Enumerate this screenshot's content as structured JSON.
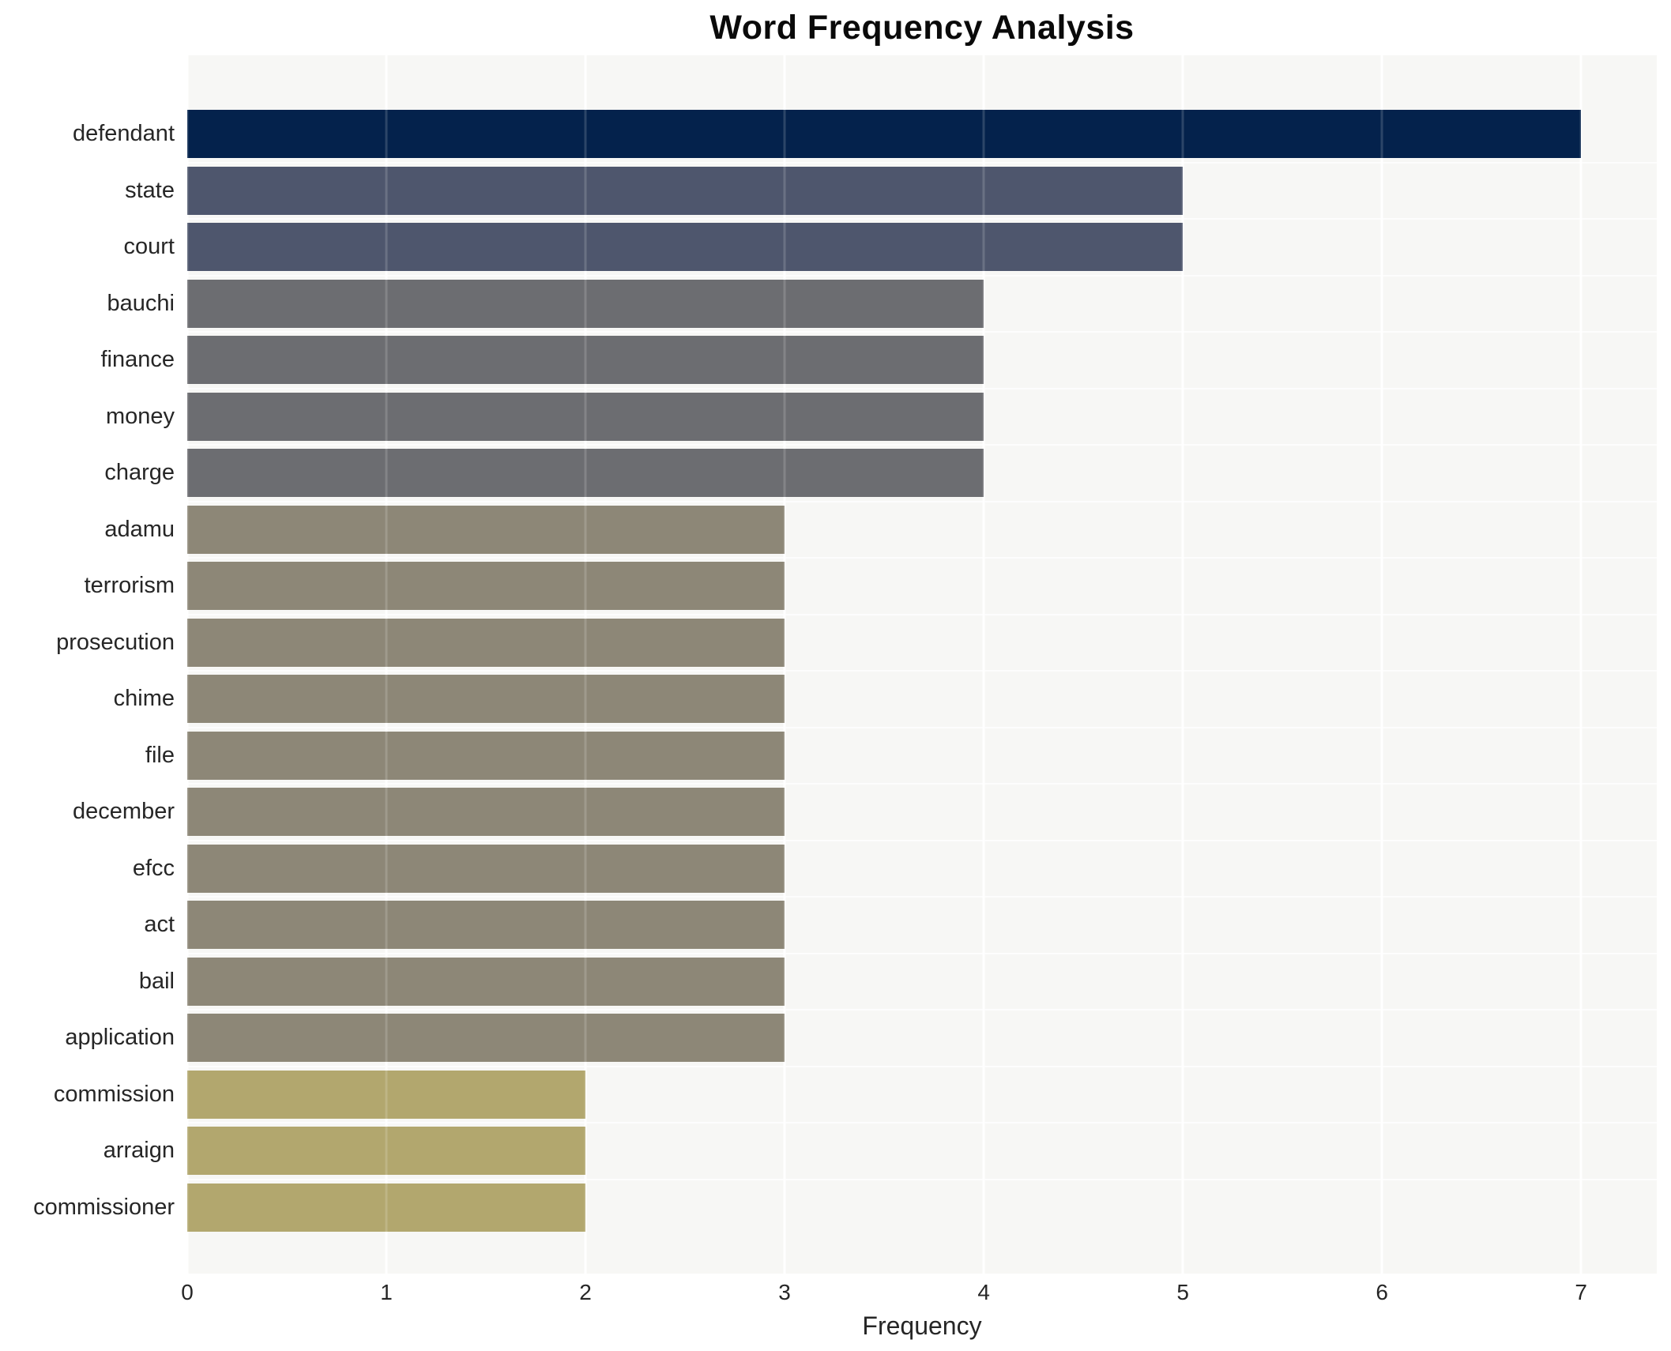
{
  "style": {
    "figure_bg": "#ffffff",
    "panel_bg": "#f7f7f5",
    "grid_color": "#ffffff",
    "text_color": "#262626",
    "title_color": "#0a0a0a"
  },
  "chart_data": {
    "type": "bar",
    "orientation": "horizontal",
    "title": "Word Frequency Analysis",
    "xlabel": "Frequency",
    "ylabel": "",
    "xlim": [
      0,
      7.38
    ],
    "x_ticks": [
      0,
      1,
      2,
      3,
      4,
      5,
      6,
      7
    ],
    "grid": "white vertical and horizontal gridlines on light gray panel",
    "legend": "none",
    "categories": [
      "defendant",
      "state",
      "court",
      "bauchi",
      "finance",
      "money",
      "charge",
      "adamu",
      "terrorism",
      "prosecution",
      "chime",
      "file",
      "december",
      "efcc",
      "act",
      "bail",
      "application",
      "commission",
      "arraign",
      "commissioner"
    ],
    "values": [
      7,
      5,
      5,
      4,
      4,
      4,
      4,
      3,
      3,
      3,
      3,
      3,
      3,
      3,
      3,
      3,
      3,
      2,
      2,
      2
    ],
    "bar_colors": [
      "#04224c",
      "#4e566d",
      "#4e566d",
      "#6c6d71",
      "#6c6d71",
      "#6c6d71",
      "#6c6d71",
      "#8d8777",
      "#8d8777",
      "#8d8777",
      "#8d8777",
      "#8d8777",
      "#8d8777",
      "#8d8777",
      "#8d8777",
      "#8d8777",
      "#8d8777",
      "#b2a76e",
      "#b2a76e",
      "#b2a76e"
    ],
    "value_color_map": {
      "7": "#04224c",
      "5": "#4e566d",
      "4": "#6c6d71",
      "3": "#8d8777",
      "2": "#b2a76e"
    }
  }
}
